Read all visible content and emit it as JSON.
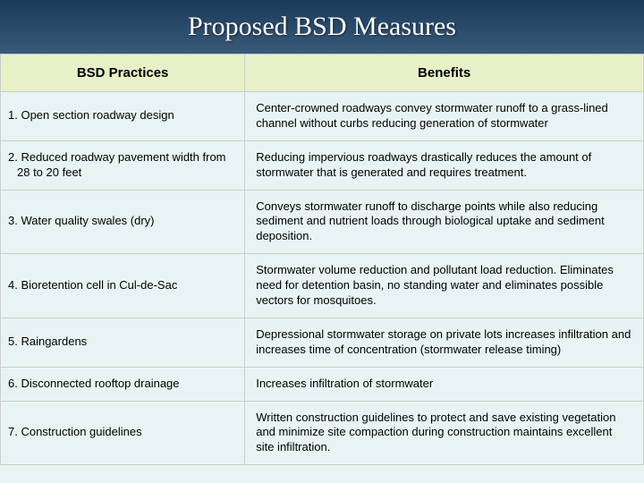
{
  "title": "Proposed BSD Measures",
  "headers": {
    "practices": "BSD Practices",
    "benefits": "Benefits"
  },
  "rows": [
    {
      "practice": "1.  Open section roadway design",
      "benefit": "Center-crowned roadways convey stormwater runoff to a grass-lined channel without curbs reducing generation of stormwater"
    },
    {
      "practice": "2.  Reduced roadway pavement width from 28 to 20 feet",
      "benefit": "Reducing impervious roadways drastically reduces the amount of stormwater that is generated and requires treatment."
    },
    {
      "practice": "3.  Water quality swales (dry)",
      "benefit": "Conveys stormwater runoff to discharge points while also reducing sediment and nutrient loads through biological uptake and sediment deposition."
    },
    {
      "practice": "4.   Bioretention cell in Cul-de-Sac",
      "benefit": "Stormwater volume reduction and pollutant load reduction. Eliminates need for detention basin, no standing water and eliminates possible vectors for mosquitoes."
    },
    {
      "practice": "5.  Raingardens",
      "benefit": "Depressional stormwater storage on private lots increases infiltration and increases time of concentration (stormwater release timing)"
    },
    {
      "practice": "6.   Disconnected rooftop drainage",
      "benefit": "Increases infiltration of stormwater"
    },
    {
      "practice": "7.  Construction guidelines",
      "benefit": "Written construction guidelines to protect and save existing vegetation and minimize site compaction during construction maintains excellent site infiltration."
    }
  ],
  "colors": {
    "title_bg": "#1e3a52",
    "header_bg": "#e8f0c8",
    "cell_bg": "#e8f4f4",
    "border": "#ccc",
    "title_text": "#ffffff",
    "body_text": "#000000"
  },
  "fonts": {
    "title_family": "Times New Roman",
    "title_size": 30,
    "header_size": 15,
    "cell_size": 13
  }
}
